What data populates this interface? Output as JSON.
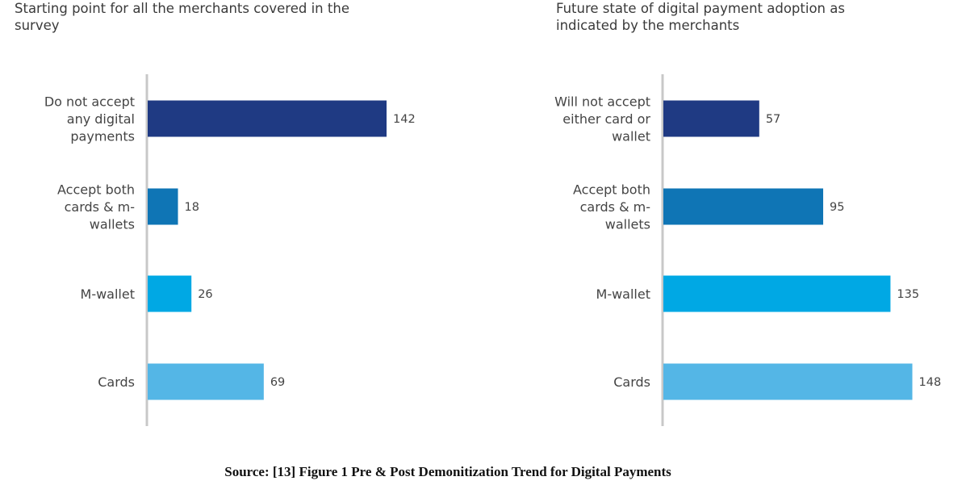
{
  "charts": [
    {
      "title": "Starting point for all the merchants covered in the\nsurvey",
      "chart_data": {
        "type": "bar",
        "orientation": "horizontal",
        "categories": [
          [
            "Do not accept",
            "any digital",
            "payments"
          ],
          [
            "Accept both",
            "cards & m-",
            "wallets"
          ],
          [
            "M-wallet"
          ],
          [
            "Cards"
          ]
        ],
        "values": [
          142,
          18,
          26,
          69
        ],
        "colors": [
          "#1f3a83",
          "#0f75b5",
          "#00a8e4",
          "#54b6e6"
        ],
        "xlim": [
          0,
          160
        ],
        "grid": false,
        "axis_color": "#c8c8c8"
      }
    },
    {
      "title": "Future state of digital payment adoption as\nindicated by the merchants",
      "chart_data": {
        "type": "bar",
        "orientation": "horizontal",
        "categories": [
          [
            "Will not accept",
            "either card or",
            "wallet"
          ],
          [
            "Accept both",
            "cards & m-",
            "wallets"
          ],
          [
            "M-wallet"
          ],
          [
            "Cards"
          ]
        ],
        "values": [
          57,
          95,
          135,
          148
        ],
        "colors": [
          "#1f3a83",
          "#0f75b5",
          "#00a8e4",
          "#54b6e6"
        ],
        "xlim": [
          0,
          160
        ],
        "grid": false,
        "axis_color": "#c8c8c8"
      }
    }
  ],
  "caption": "Source: [13] Figure 1 Pre & Post Demonitization Trend for Digital Payments"
}
